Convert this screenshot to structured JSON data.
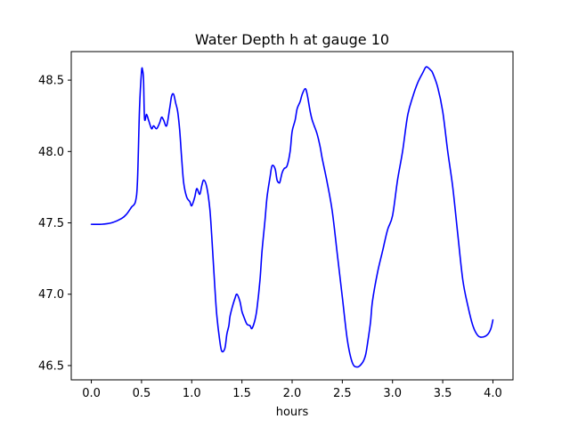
{
  "chart_data": {
    "type": "line",
    "title": "Water Depth h at gauge 10",
    "xlabel": "hours",
    "ylabel": "",
    "xlim": [
      -0.2,
      4.2
    ],
    "ylim": [
      46.4,
      48.7
    ],
    "x_ticks": [
      0.0,
      0.5,
      1.0,
      1.5,
      2.0,
      2.5,
      3.0,
      3.5,
      4.0
    ],
    "x_tick_labels": [
      "0.0",
      "0.5",
      "1.0",
      "1.5",
      "2.0",
      "2.5",
      "3.0",
      "3.5",
      "4.0"
    ],
    "y_ticks": [
      46.5,
      47.0,
      47.5,
      48.0,
      48.5
    ],
    "y_tick_labels": [
      "46.5",
      "47.0",
      "47.5",
      "48.0",
      "48.5"
    ],
    "grid": false,
    "color": "#0000ff",
    "series": [
      {
        "x": [
          0.0,
          0.1,
          0.2,
          0.3,
          0.35,
          0.4,
          0.44,
          0.46,
          0.48,
          0.5,
          0.51,
          0.52,
          0.53,
          0.55,
          0.57,
          0.6,
          0.62,
          0.65,
          0.68,
          0.7,
          0.72,
          0.75,
          0.78,
          0.8,
          0.82,
          0.84,
          0.86,
          0.88,
          0.9,
          0.92,
          0.95,
          0.98,
          1.0,
          1.03,
          1.05,
          1.08,
          1.1,
          1.12,
          1.15,
          1.18,
          1.2,
          1.23,
          1.25,
          1.28,
          1.3,
          1.33,
          1.35,
          1.37,
          1.38,
          1.4,
          1.43,
          1.45,
          1.48,
          1.5,
          1.52,
          1.55,
          1.58,
          1.6,
          1.63,
          1.65,
          1.68,
          1.7,
          1.73,
          1.75,
          1.78,
          1.8,
          1.83,
          1.85,
          1.87,
          1.88,
          1.9,
          1.92,
          1.95,
          1.98,
          2.0,
          2.03,
          2.05,
          2.08,
          2.1,
          2.13,
          2.15,
          2.18,
          2.2,
          2.22,
          2.25,
          2.28,
          2.3,
          2.35,
          2.4,
          2.45,
          2.5,
          2.55,
          2.6,
          2.65,
          2.7,
          2.73,
          2.75,
          2.78,
          2.8,
          2.85,
          2.9,
          2.95,
          3.0,
          3.05,
          3.1,
          3.15,
          3.2,
          3.25,
          3.3,
          3.33,
          3.35,
          3.38,
          3.4,
          3.45,
          3.5,
          3.55,
          3.6,
          3.65,
          3.7,
          3.75,
          3.8,
          3.85,
          3.9,
          3.95,
          3.98,
          4.0
        ],
        "y": [
          47.49,
          47.49,
          47.5,
          47.53,
          47.56,
          47.61,
          47.65,
          47.8,
          48.3,
          48.56,
          48.57,
          48.5,
          48.23,
          48.26,
          48.22,
          48.16,
          48.18,
          48.16,
          48.2,
          48.24,
          48.22,
          48.18,
          48.3,
          48.39,
          48.4,
          48.34,
          48.28,
          48.15,
          47.95,
          47.78,
          47.68,
          47.65,
          47.62,
          47.68,
          47.74,
          47.7,
          47.76,
          47.8,
          47.75,
          47.6,
          47.4,
          47.05,
          46.85,
          46.67,
          46.6,
          46.62,
          46.72,
          46.78,
          46.84,
          46.9,
          46.97,
          47.0,
          46.95,
          46.88,
          46.84,
          46.79,
          46.78,
          46.76,
          46.82,
          46.9,
          47.1,
          47.3,
          47.52,
          47.68,
          47.82,
          47.9,
          47.88,
          47.8,
          47.78,
          47.79,
          47.85,
          47.88,
          47.9,
          48.0,
          48.14,
          48.22,
          48.3,
          48.35,
          48.4,
          48.44,
          48.4,
          48.28,
          48.22,
          48.18,
          48.12,
          48.03,
          47.95,
          47.78,
          47.58,
          47.28,
          46.98,
          46.68,
          46.52,
          46.49,
          46.52,
          46.57,
          46.65,
          46.8,
          46.95,
          47.15,
          47.3,
          47.45,
          47.55,
          47.8,
          48.0,
          48.25,
          48.38,
          48.48,
          48.55,
          48.59,
          48.59,
          48.57,
          48.55,
          48.45,
          48.28,
          48.0,
          47.75,
          47.42,
          47.1,
          46.92,
          46.78,
          46.71,
          46.7,
          46.72,
          46.76,
          46.82
        ]
      }
    ]
  }
}
